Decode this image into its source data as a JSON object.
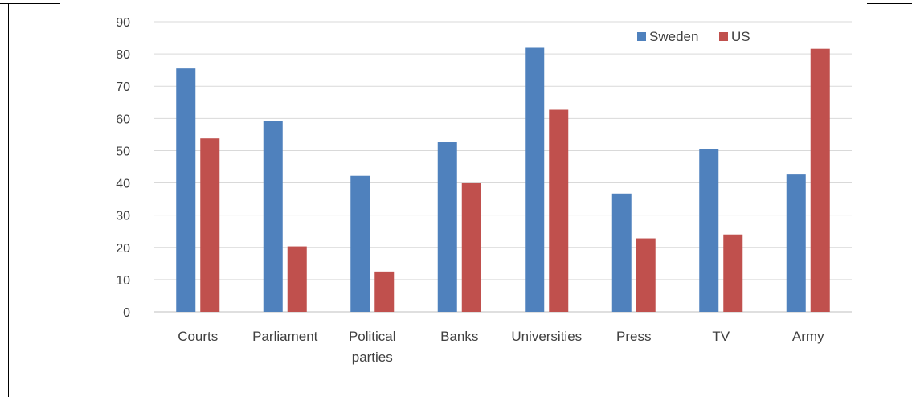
{
  "chart_data": {
    "type": "bar",
    "categories": [
      "Courts",
      "Parliament",
      "Political parties",
      "Banks",
      "Universities",
      "Press",
      "TV",
      "Army"
    ],
    "category_lines": [
      [
        "Courts"
      ],
      [
        "Parliament"
      ],
      [
        "Political",
        "parties"
      ],
      [
        "Banks"
      ],
      [
        "Universities"
      ],
      [
        "Press"
      ],
      [
        "TV"
      ],
      [
        "Army"
      ]
    ],
    "series": [
      {
        "name": "Sweden",
        "color": "#4f81bd",
        "values": [
          75.5,
          59.2,
          42.2,
          52.6,
          81.9,
          36.7,
          50.4,
          42.6
        ]
      },
      {
        "name": "US",
        "color": "#c0504d",
        "values": [
          53.8,
          20.3,
          12.5,
          39.9,
          62.7,
          22.8,
          24.0,
          81.6
        ]
      }
    ],
    "yticks": [
      "0",
      "10",
      "20",
      "30",
      "40",
      "50",
      "60",
      "70",
      "80",
      "90"
    ],
    "ylim": [
      0,
      90
    ],
    "grid": true,
    "legend_position": "top-right"
  }
}
